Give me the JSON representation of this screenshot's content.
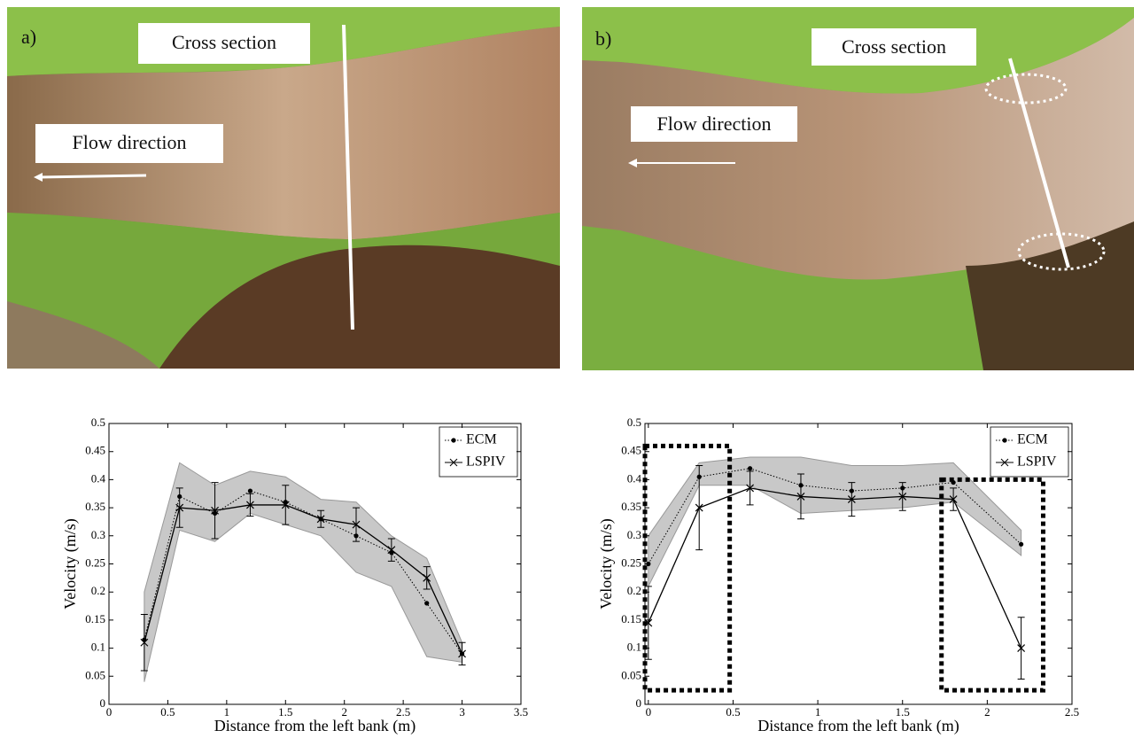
{
  "panels": [
    {
      "label": "a)",
      "cross_section": "Cross section",
      "flow": "Flow direction"
    },
    {
      "label": "b)",
      "cross_section": "Cross section",
      "flow": "Flow direction"
    }
  ],
  "chart_data": [
    {
      "type": "line",
      "ylabel": "Velocity (m/s)",
      "xlabel": "Distance from the left bank (m)",
      "xlim": [
        0,
        3.5
      ],
      "xticks": [
        0,
        0.5,
        1,
        1.5,
        2,
        2.5,
        3,
        3.5
      ],
      "ylim": [
        0,
        0.5
      ],
      "yticks": [
        0,
        0.05,
        0.1,
        0.15,
        0.2,
        0.25,
        0.3,
        0.35,
        0.4,
        0.45,
        0.5
      ],
      "legend": "top-right",
      "x": [
        0.3,
        0.6,
        0.9,
        1.2,
        1.5,
        1.8,
        2.1,
        2.4,
        2.7,
        3.0
      ],
      "band": {
        "color": "#c8c8c8",
        "lower": [
          0.04,
          0.31,
          0.29,
          0.34,
          0.32,
          0.3,
          0.235,
          0.21,
          0.085,
          0.075
        ],
        "upper": [
          0.2,
          0.43,
          0.39,
          0.415,
          0.405,
          0.365,
          0.36,
          0.3,
          0.26,
          0.11
        ]
      },
      "series": [
        {
          "name": "ECM",
          "color": "#000000",
          "line_style": "dotted",
          "marker": "dot",
          "values": [
            0.115,
            0.37,
            0.34,
            0.38,
            0.36,
            0.33,
            0.3,
            0.27,
            0.18,
            0.09
          ]
        },
        {
          "name": "LSPIV",
          "color": "#000000",
          "line_style": "solid",
          "marker": "x",
          "values": [
            0.11,
            0.35,
            0.345,
            0.355,
            0.355,
            0.33,
            0.32,
            0.275,
            0.225,
            0.09
          ],
          "errors": [
            0.05,
            0.035,
            0.05,
            0.02,
            0.035,
            0.015,
            0.03,
            0.02,
            0.02,
            0.02
          ]
        }
      ]
    },
    {
      "type": "line",
      "ylabel": "Velocity (m/s)",
      "xlabel": "Distance from the left bank (m)",
      "xlim": [
        -0.02,
        2.5
      ],
      "xticks": [
        0,
        0.5,
        1,
        1.5,
        2,
        2.5
      ],
      "ylim": [
        0,
        0.5
      ],
      "yticks": [
        0,
        0.05,
        0.1,
        0.15,
        0.2,
        0.25,
        0.3,
        0.35,
        0.4,
        0.45,
        0.5
      ],
      "legend": "top-right",
      "x": [
        0,
        0.3,
        0.6,
        0.9,
        1.2,
        1.5,
        1.8,
        2.2
      ],
      "band": {
        "color": "#c8c8c8",
        "lower": [
          0.21,
          0.39,
          0.39,
          0.34,
          0.345,
          0.35,
          0.36,
          0.265
        ],
        "upper": [
          0.3,
          0.43,
          0.44,
          0.44,
          0.425,
          0.425,
          0.43,
          0.31
        ]
      },
      "highlight_boxes": [
        {
          "x": [
            -0.02,
            0.48
          ],
          "y": [
            0.025,
            0.46
          ]
        },
        {
          "x": [
            1.73,
            2.33
          ],
          "y": [
            0.025,
            0.4
          ]
        }
      ],
      "series": [
        {
          "name": "ECM",
          "color": "#000000",
          "line_style": "dotted",
          "marker": "dot",
          "values": [
            0.25,
            0.405,
            0.42,
            0.39,
            0.38,
            0.385,
            0.395,
            0.285
          ]
        },
        {
          "name": "LSPIV",
          "color": "#000000",
          "line_style": "solid",
          "marker": "x",
          "values": [
            0.145,
            0.35,
            0.385,
            0.37,
            0.365,
            0.37,
            0.365,
            0.1
          ],
          "errors": [
            0.065,
            0.075,
            0.03,
            0.04,
            0.03,
            0.025,
            0.02,
            0.055
          ]
        }
      ]
    }
  ]
}
